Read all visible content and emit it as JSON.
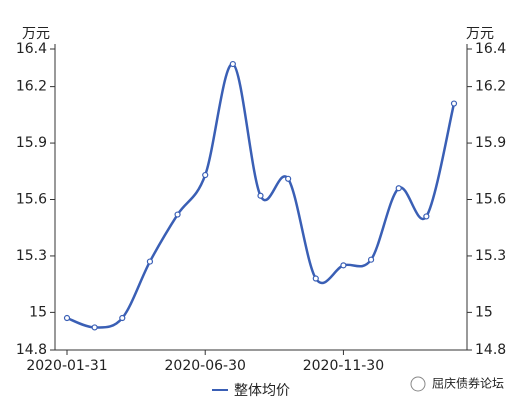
{
  "chart_data": {
    "type": "line",
    "y_unit": "万元",
    "y2_unit": "万元",
    "categories": [
      "2020-01-31",
      null,
      null,
      null,
      null,
      "2020-06-30",
      null,
      null,
      null,
      null,
      "2020-11-30",
      null,
      null,
      null,
      null
    ],
    "series": [
      {
        "name": "整体均价",
        "color": "#3a5fb5",
        "values": [
          14.97,
          14.92,
          14.97,
          15.27,
          15.52,
          15.73,
          16.32,
          15.62,
          15.71,
          15.18,
          15.25,
          15.28,
          15.66,
          15.51,
          16.11
        ]
      }
    ],
    "ylim": [
      14.8,
      16.4
    ],
    "yticks": [
      14.8,
      15,
      15.3,
      15.6,
      15.9,
      16.2,
      16.4
    ],
    "y2lim": [
      14.8,
      16.4
    ],
    "y2ticks": [
      14.8,
      15,
      15.3,
      15.6,
      15.9,
      16.2,
      16.4
    ],
    "watermark": "屈庆债券论坛"
  }
}
